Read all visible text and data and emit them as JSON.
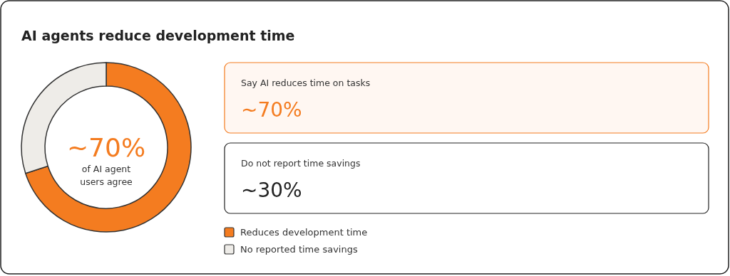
{
  "chart_data": {
    "type": "donut",
    "title": "AI agents reduce development time",
    "categories": [
      "Reduces development time",
      "No reported time savings"
    ],
    "values": [
      70,
      30
    ],
    "colors": [
      "#f47c20",
      "#eeece8"
    ],
    "legend": "right",
    "annotations": [
      "~70%",
      "of AI agent users agree",
      "Say AI reduces time on tasks",
      "~70%",
      "Do not report time savings",
      "~30%"
    ]
  }
}
